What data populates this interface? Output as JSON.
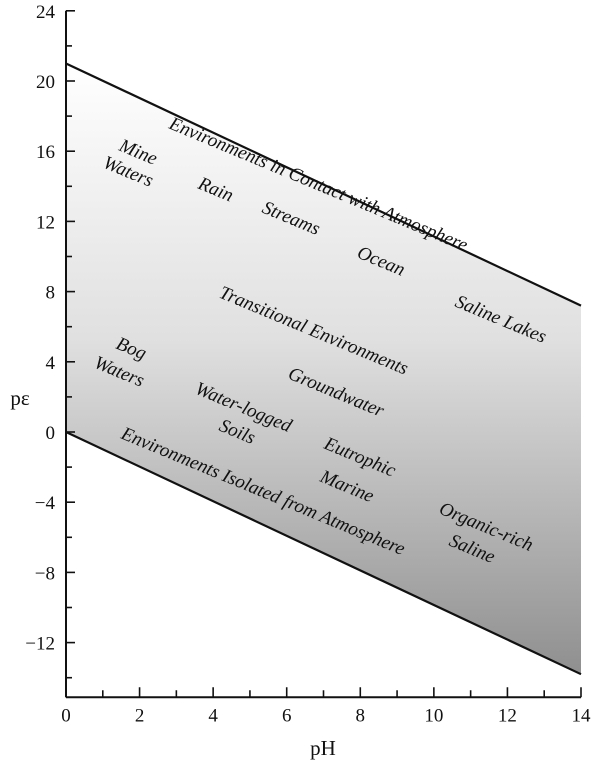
{
  "chart_data": {
    "type": "area",
    "xlabel": "pH",
    "ylabel": "pε",
    "xlim": [
      0,
      14
    ],
    "ylim": [
      -15,
      24
    ],
    "x_ticks": [
      0,
      2,
      4,
      6,
      8,
      10,
      12,
      14
    ],
    "y_ticks": [
      24,
      20,
      16,
      12,
      8,
      4,
      0,
      -4,
      -8,
      -12
    ],
    "boundaries": [
      {
        "x": [
          0,
          14
        ],
        "y": [
          21,
          7.2
        ]
      },
      {
        "x": [
          0,
          14
        ],
        "y": [
          0,
          -13.8
        ]
      }
    ],
    "labels": {
      "upper_boundary": "Environments in Contact with Atmosphere",
      "lower_boundary": "Environments Isolated from Atmosphere",
      "mine_line1": "Mine",
      "mine_line2": "Waters",
      "rain": "Rain",
      "streams": "Streams",
      "ocean": "Ocean",
      "saline_lakes": "Saline Lakes",
      "transitional": "Transitional Environments",
      "groundwater": "Groundwater",
      "bog_line1": "Bog",
      "bog_line2": "Waters",
      "waterlogged_line1": "Water-logged",
      "waterlogged_line2": "Soils",
      "eutrophic_line1": "Eutrophic",
      "eutrophic_line2": "Marine",
      "organic_line1": "Organic-rich",
      "organic_line2": "Saline"
    }
  }
}
